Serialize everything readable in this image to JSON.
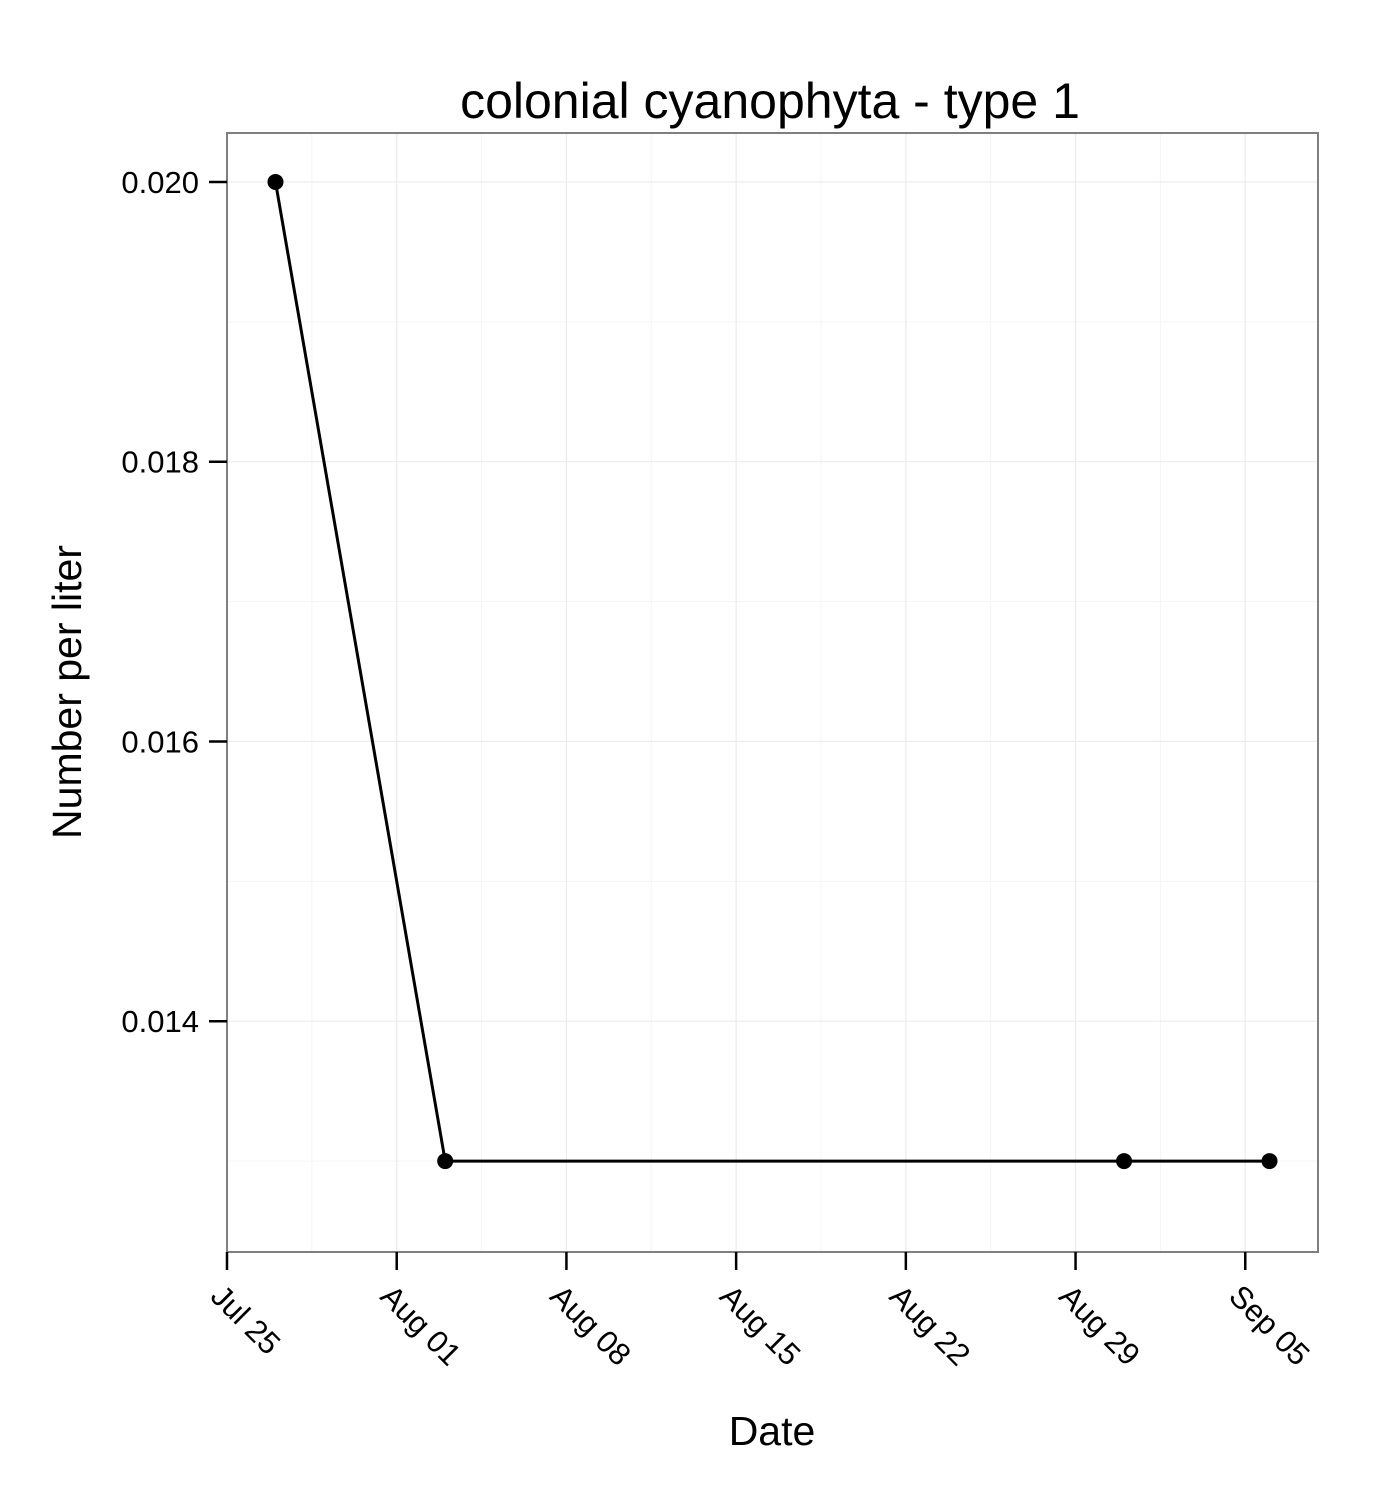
{
  "chart_data": {
    "type": "line",
    "title": "colonial cyanophyta - type 1",
    "xlabel": "Date",
    "ylabel": "Number per liter",
    "x_ticks": [
      "2014-07-25",
      "2014-08-01",
      "2014-08-08",
      "2014-08-15",
      "2014-08-22",
      "2014-08-29",
      "2014-09-05"
    ],
    "x_tick_labels": [
      "Jul 25",
      "Aug 01",
      "Aug 08",
      "Aug 15",
      "Aug 22",
      "Aug 29",
      "Sep 05"
    ],
    "xlim": [
      "2014-07-25",
      "2014-09-08"
    ],
    "y_ticks": [
      0.014,
      0.016,
      0.018,
      0.02
    ],
    "y_tick_labels": [
      "0.014",
      "0.016",
      "0.018",
      "0.020"
    ],
    "ylim": [
      0.01235,
      0.02035
    ],
    "grid": true,
    "colors": {
      "line": "#000000",
      "points": "#000000",
      "panel_border": "#7f7f7f",
      "grid": "#ebebeb"
    },
    "series": [
      {
        "x": [
          "2014-07-27",
          "2014-08-03",
          "2014-08-31",
          "2014-09-06"
        ],
        "y": [
          0.02,
          0.013,
          0.013,
          0.013
        ]
      }
    ]
  }
}
